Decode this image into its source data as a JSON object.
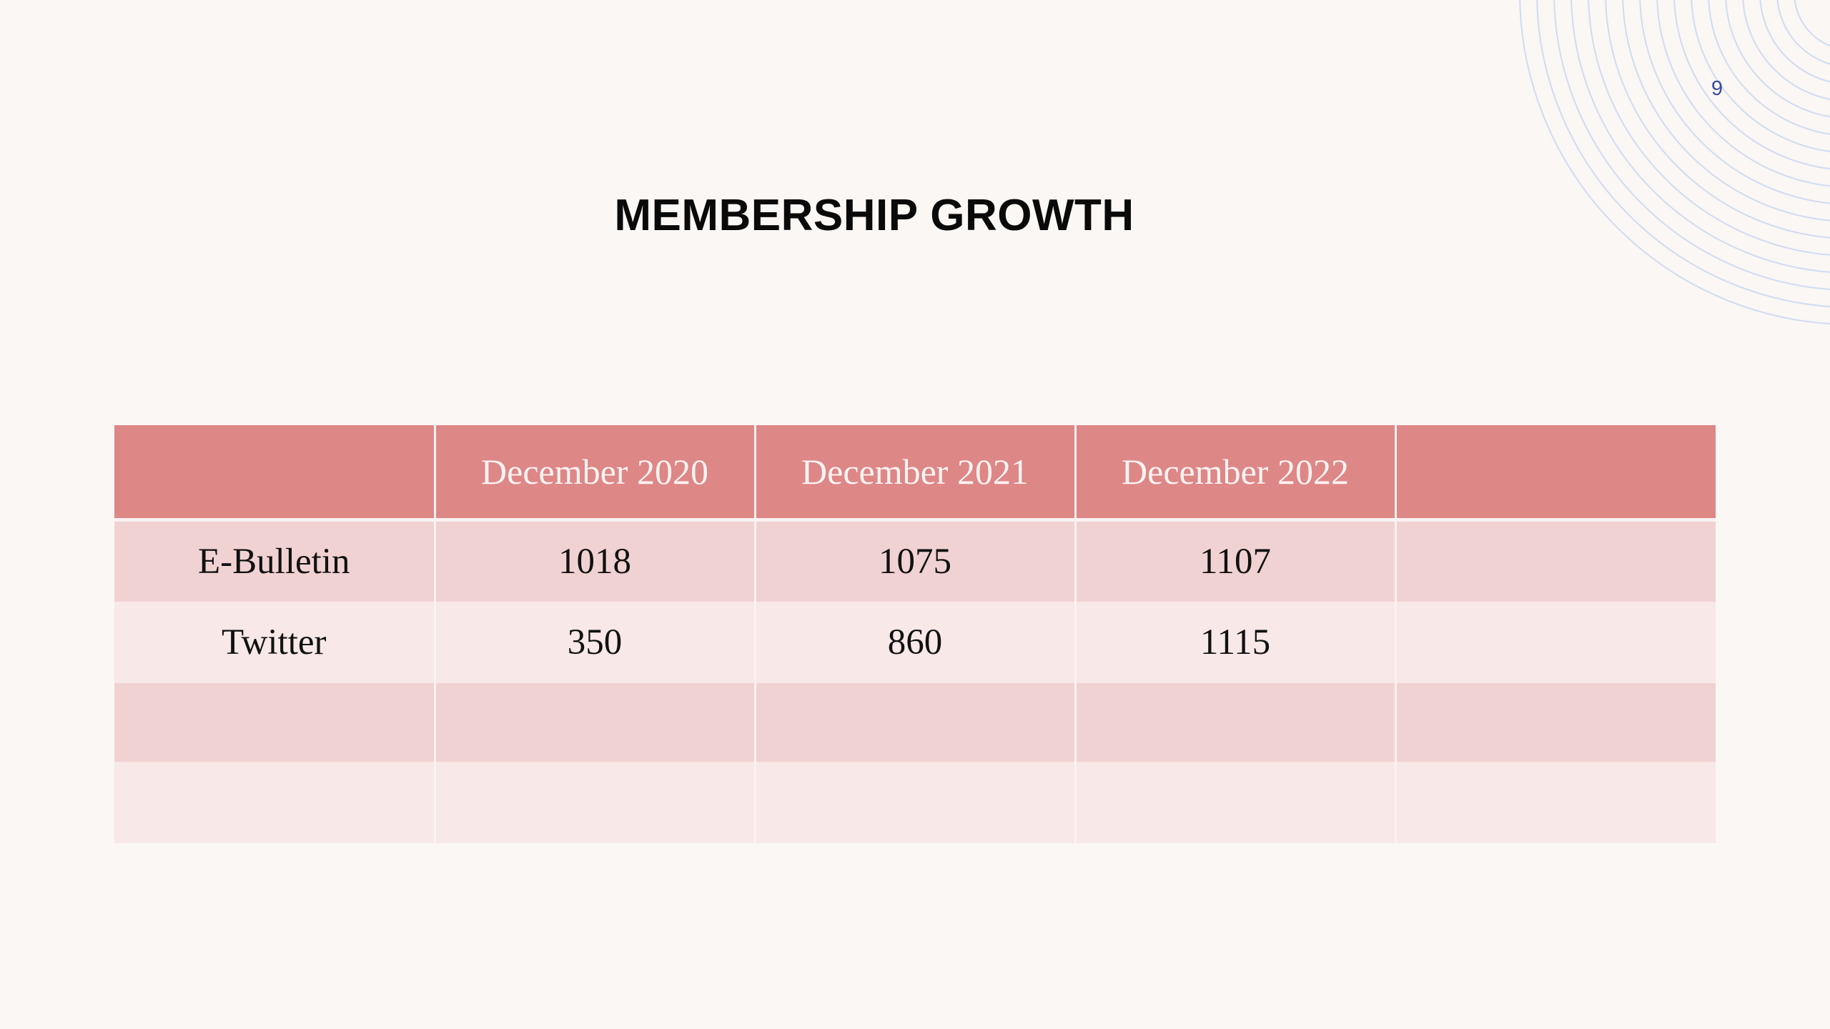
{
  "slide": {
    "page_number": "9",
    "title": "MEMBERSHIP GROWTH"
  },
  "table": {
    "columns": [
      "",
      "December 2020",
      "December 2021",
      "December 2022",
      ""
    ],
    "rows": [
      [
        "E-Bulletin",
        "1018",
        "1075",
        "1107",
        ""
      ],
      [
        "Twitter",
        "350",
        "860",
        "1115",
        ""
      ],
      [
        "",
        "",
        "",
        "",
        ""
      ],
      [
        "",
        "",
        "",
        "",
        ""
      ]
    ]
  },
  "colors": {
    "background": "#faf7f4",
    "header": "#dd8787",
    "row_dark": "#f1d2d2",
    "row_light": "#f8e8e8",
    "accent_arcs": "#c9d6f3",
    "page_number": "#3a4aa8"
  },
  "decor": {
    "icon": "concentric-arcs"
  }
}
